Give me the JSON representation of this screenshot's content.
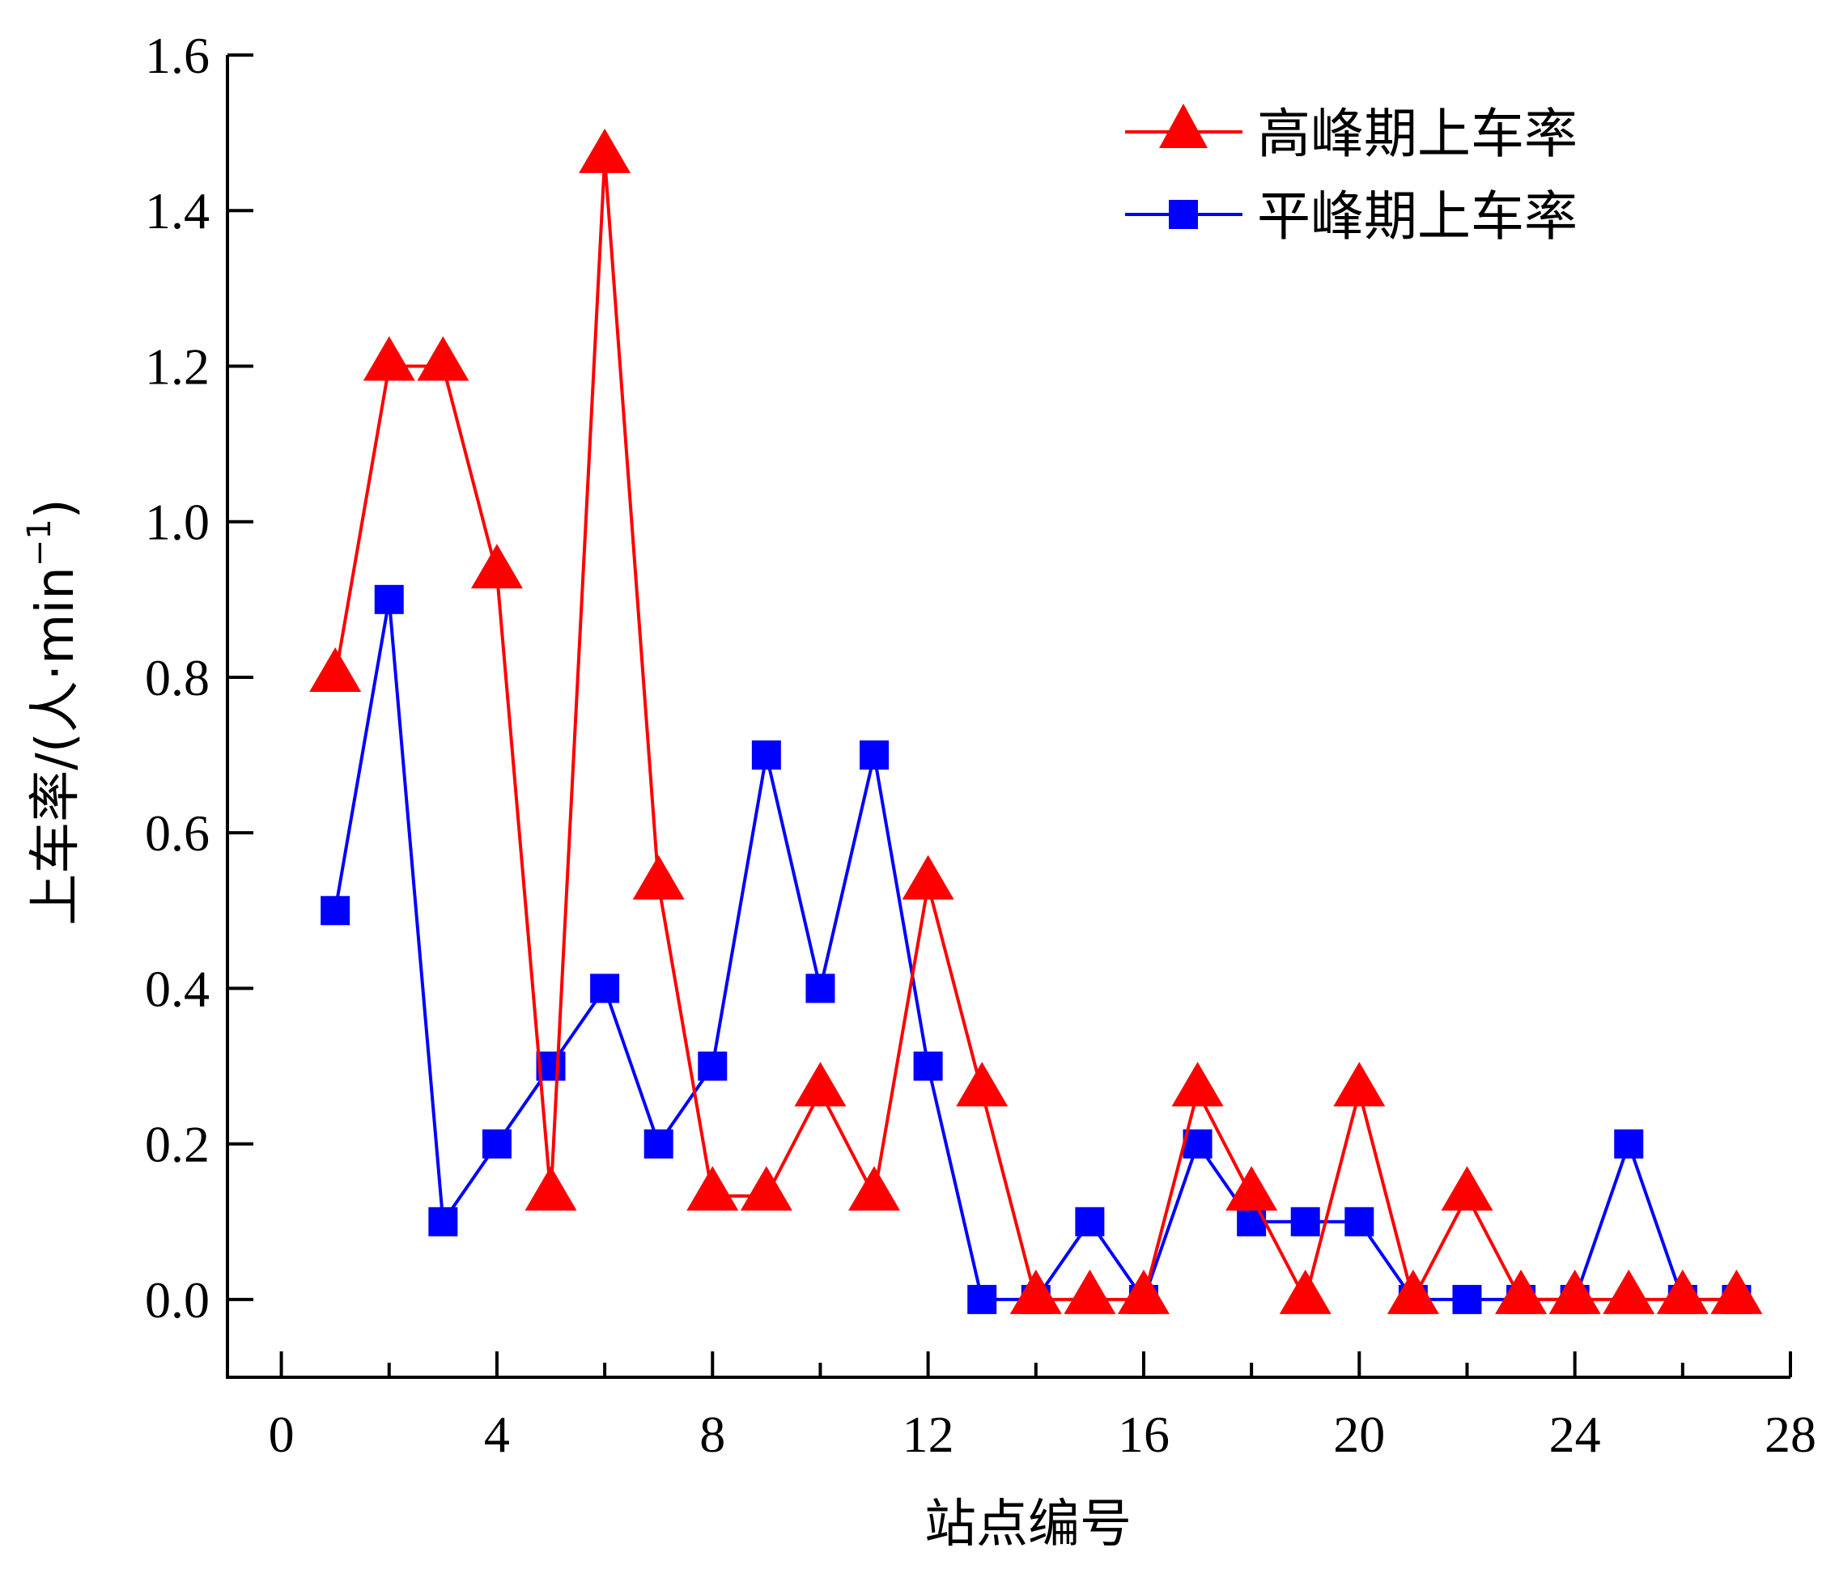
{
  "chart_data": {
    "type": "line",
    "xlabel": "站点编号",
    "ylabel": {
      "main": "上车率/(人·min",
      "superscript": "−1",
      "close": ")"
    },
    "xlim": [
      -1,
      28
    ],
    "ylim": [
      -0.1,
      1.6
    ],
    "xticks": [
      0,
      4,
      8,
      12,
      16,
      20,
      24,
      28
    ],
    "xtick_labels": [
      "0",
      "4",
      "8",
      "12",
      "16",
      "20",
      "24",
      "28"
    ],
    "yticks": [
      0.0,
      0.2,
      0.4,
      0.6,
      0.8,
      1.0,
      1.2,
      1.4,
      1.6
    ],
    "ytick_labels": [
      "0.0",
      "0.2",
      "0.4",
      "0.6",
      "0.8",
      "1.0",
      "1.2",
      "1.4",
      "1.6"
    ],
    "legend_position": "top-right",
    "grid": false,
    "x": [
      1,
      2,
      3,
      4,
      5,
      6,
      7,
      8,
      9,
      10,
      11,
      12,
      13,
      14,
      15,
      16,
      17,
      18,
      19,
      20,
      21,
      22,
      23,
      24,
      25,
      26,
      27
    ],
    "series": [
      {
        "name": "高峰期上车率",
        "color": "#ff0000",
        "marker": "triangle",
        "values": [
          0.8,
          1.2,
          1.2,
          0.933,
          0.133,
          1.467,
          0.533,
          0.133,
          0.133,
          0.267,
          0.133,
          0.533,
          0.267,
          0,
          0,
          0,
          0.267,
          0.133,
          0,
          0.267,
          0,
          0.133,
          0,
          0,
          0,
          0,
          0
        ]
      },
      {
        "name": "平峰期上车率",
        "color": "#0000ff",
        "marker": "square",
        "values": [
          0.5,
          0.9,
          0.1,
          0.2,
          0.3,
          0.4,
          0.2,
          0.3,
          0.7,
          0.4,
          0.7,
          0.3,
          0,
          0,
          0.1,
          0,
          0.2,
          0.1,
          0.1,
          0.1,
          0,
          0,
          0,
          0,
          0.2,
          0,
          0
        ]
      }
    ]
  }
}
